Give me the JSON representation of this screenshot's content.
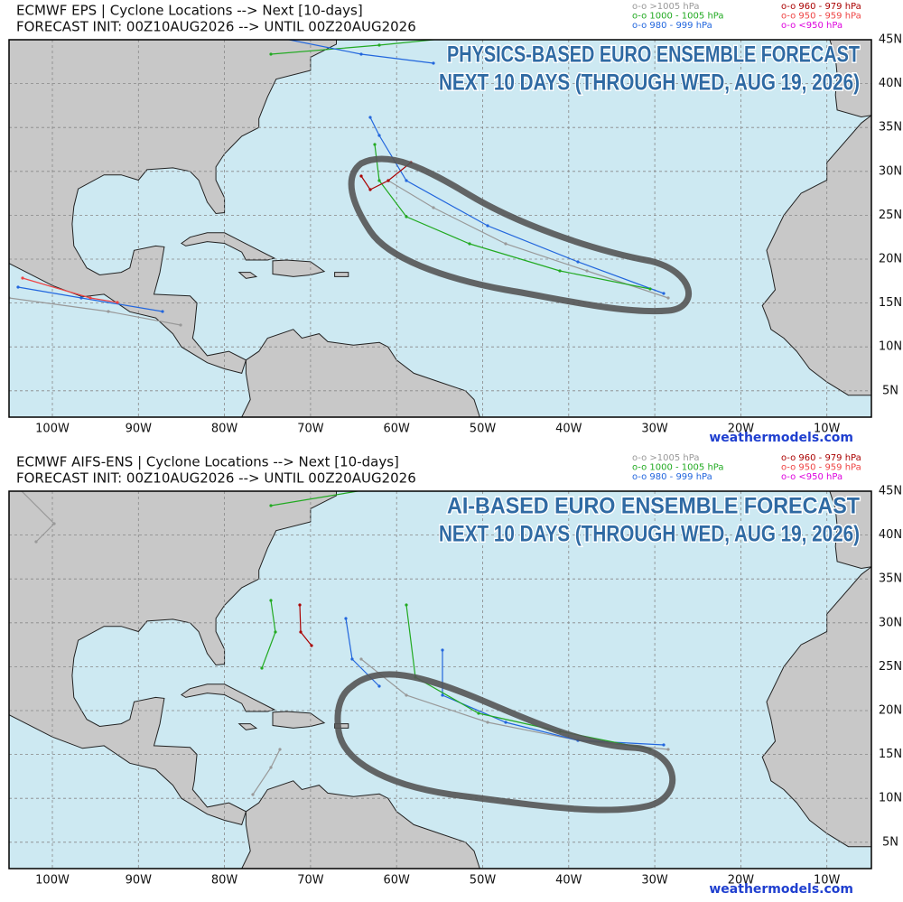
{
  "panels": [
    {
      "title": "ECMWF EPS | Cyclone Locations --> Next [10-days]",
      "subtitle": "FORECAST INIT: 00Z10AUG2026 --> UNTIL 00Z20AUG2026",
      "overlay": [
        "PHYSICS-BASED EURO ENSEMBLE FORECAST",
        "NEXT 10 DAYS (THROUGH WED, AUG 19, 2026)"
      ],
      "watermark": "weathermodels.com"
    },
    {
      "title": "ECMWF AIFS-ENS | Cyclone Locations --> Next [10-days]",
      "subtitle": "FORECAST INIT: 00Z10AUG2026 --> UNTIL 00Z20AUG2026",
      "overlay": [
        "AI-BASED EURO ENSEMBLE FORECAST",
        "NEXT 10 DAYS (THROUGH WED, AUG 19, 2026)"
      ],
      "watermark": "weathermodels.com"
    }
  ],
  "legend": [
    {
      "label": "o-o >1005 hPa",
      "color": "#999999"
    },
    {
      "label": "o-o 1000 - 1005 hPa",
      "color": "#22aa22"
    },
    {
      "label": "o-o 980 - 999 hPa",
      "color": "#2266dd"
    },
    {
      "label": "o-o 960 - 979 hPa",
      "color": "#aa0000"
    },
    {
      "label": "o-o 950 - 959 hPa",
      "color": "#ee4444"
    },
    {
      "label": "o-o <950 hPa",
      "color": "#dd00dd"
    }
  ],
  "lon_labels": [
    "100W",
    "90W",
    "80W",
    "70W",
    "60W",
    "50W",
    "40W",
    "30W",
    "20W",
    "10W"
  ],
  "lat_labels": [
    "45N",
    "40N",
    "35N",
    "30N",
    "25N",
    "20N",
    "15N",
    "10N",
    "5N"
  ]
}
